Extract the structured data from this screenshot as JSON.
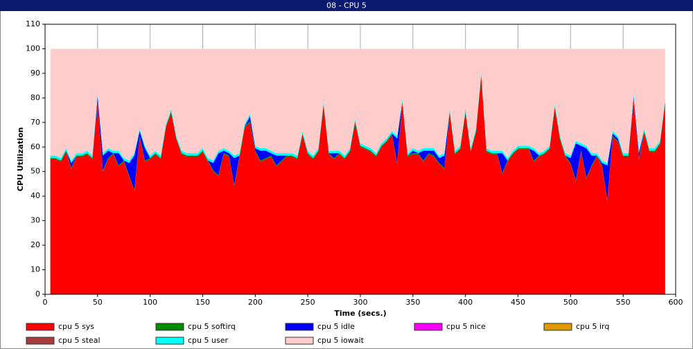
{
  "chart_data": {
    "type": "stacked_area",
    "title": "08 - CPU 5",
    "x_label": "Time (secs.)",
    "y_label": "CPU Utilization",
    "xlim": [
      0,
      600
    ],
    "xticks": [
      0,
      50,
      100,
      150,
      200,
      250,
      300,
      350,
      400,
      450,
      500,
      550,
      600
    ],
    "ylim": [
      0,
      110
    ],
    "yticks": [
      0,
      10,
      20,
      30,
      40,
      50,
      60,
      70,
      80,
      90,
      100,
      110
    ],
    "grid": "x",
    "x": [
      5,
      10,
      15,
      20,
      25,
      30,
      35,
      40,
      45,
      50,
      55,
      60,
      65,
      70,
      75,
      80,
      85,
      90,
      95,
      100,
      105,
      110,
      115,
      120,
      125,
      130,
      135,
      140,
      145,
      150,
      155,
      160,
      165,
      170,
      175,
      180,
      185,
      190,
      195,
      200,
      205,
      210,
      215,
      220,
      225,
      230,
      235,
      240,
      245,
      250,
      255,
      260,
      265,
      270,
      275,
      280,
      285,
      290,
      295,
      300,
      305,
      310,
      315,
      320,
      325,
      330,
      335,
      340,
      345,
      350,
      355,
      360,
      365,
      370,
      375,
      380,
      385,
      390,
      395,
      400,
      405,
      410,
      415,
      420,
      425,
      430,
      435,
      440,
      445,
      450,
      455,
      460,
      465,
      470,
      475,
      480,
      485,
      490,
      495,
      500,
      505,
      510,
      515,
      520,
      525,
      530,
      535,
      540,
      545,
      550,
      555,
      560,
      565,
      570,
      575,
      580,
      585,
      590
    ],
    "series": [
      {
        "name": "cpu 5 sys",
        "color": "#ff0000",
        "values": [
          55,
          55,
          54,
          58,
          51,
          56,
          56,
          57,
          55,
          78,
          50,
          55,
          57,
          52,
          54,
          48,
          42,
          64,
          54,
          55,
          57,
          55,
          68,
          74,
          63,
          57,
          56,
          56,
          56,
          58,
          54,
          50,
          48,
          57,
          56,
          44,
          56,
          68,
          70,
          58,
          54,
          55,
          56,
          52,
          54,
          56,
          56,
          55,
          65,
          57,
          55,
          58,
          77,
          57,
          55,
          57,
          55,
          58,
          70,
          60,
          59,
          58,
          56,
          60,
          62,
          65,
          53,
          78,
          56,
          57,
          57,
          54,
          57,
          56,
          53,
          51,
          74,
          57,
          59,
          74,
          58,
          66,
          89,
          58,
          57,
          57,
          49,
          54,
          57,
          59,
          59,
          59,
          54,
          56,
          57,
          59,
          76,
          63,
          56,
          53,
          46,
          58,
          47,
          52,
          56,
          52,
          38,
          64,
          62,
          56,
          56,
          79,
          55,
          66,
          58,
          58,
          61,
          78
        ]
      },
      {
        "name": "cpu 5 softirq",
        "color": "#008c00",
        "values": [
          0.5,
          0.5,
          0.5,
          0.5,
          0.5,
          0.5,
          0.5,
          0.5,
          0.5,
          0.5,
          0.5,
          0.5,
          0.5,
          0.5,
          0.5,
          0.5,
          0.5,
          0.5,
          0.5,
          0.5,
          0.5,
          0.5,
          0.5,
          0.5,
          0.5,
          0.5,
          0.5,
          0.5,
          0.5,
          0.5,
          0.5,
          0.5,
          0.5,
          0.5,
          0.5,
          0.5,
          0.5,
          0.5,
          0.5,
          0.5,
          0.5,
          0.5,
          0.5,
          0.5,
          0.5,
          0.5,
          0.5,
          0.5,
          0.5,
          0.5,
          0.5,
          0.5,
          0.5,
          0.5,
          0.5,
          0.5,
          0.5,
          0.5,
          0.5,
          0.5,
          0.5,
          0.5,
          0.5,
          0.5,
          0.5,
          0.5,
          0.5,
          0.5,
          0.5,
          0.5,
          0.5,
          0.5,
          0.5,
          0.5,
          0.5,
          0.5,
          0.5,
          0.5,
          0.5,
          0.5,
          0.5,
          0.5,
          0.5,
          0.5,
          0.5,
          0.5,
          0.5,
          0.5,
          0.5,
          0.5,
          0.5,
          0.5,
          0.5,
          0.5,
          0.5,
          0.5,
          0.5,
          0.5,
          0.5,
          0.5,
          0.5,
          0.5,
          0.5,
          0.5,
          0.5,
          0.5,
          0.5,
          0.5,
          0.5,
          0.5,
          0.5,
          0.5,
          0.5,
          0.5,
          0.5,
          0.5,
          0.5,
          0.5
        ]
      },
      {
        "name": "cpu 5 idle",
        "color": "#0000ff",
        "values": [
          0,
          0,
          0,
          0,
          2,
          0,
          0,
          0,
          0,
          2,
          6,
          3,
          0,
          5,
          0,
          5,
          14,
          2,
          5,
          0,
          0,
          0,
          0,
          0,
          0,
          0,
          0,
          0,
          0,
          0,
          0,
          3,
          9,
          1,
          1,
          11,
          0,
          0,
          2,
          1,
          4,
          3,
          1,
          4,
          2,
          0,
          0,
          0,
          0,
          0,
          0,
          0,
          0,
          0,
          2,
          0,
          0,
          0,
          0,
          0,
          0,
          0,
          0,
          0,
          0,
          0,
          10,
          0,
          0,
          1,
          0,
          4,
          1,
          2,
          2,
          5,
          0,
          0,
          0,
          0,
          0,
          0,
          0,
          0,
          0,
          0,
          8,
          0,
          0,
          0,
          0,
          0,
          4,
          0,
          0,
          0,
          0,
          0,
          0,
          2,
          15,
          2,
          12,
          4,
          0,
          1,
          14,
          1,
          1,
          0,
          0,
          1,
          2,
          0,
          0,
          0,
          0,
          0
        ]
      },
      {
        "name": "cpu 5 nice",
        "color": "#ff00ff",
        "values": [
          0,
          0,
          0,
          0,
          0,
          0,
          0,
          0,
          0,
          0,
          0,
          0,
          0,
          0,
          0,
          0,
          0,
          0,
          0,
          0,
          0,
          0,
          0,
          0,
          0,
          0,
          0,
          0,
          0,
          0,
          0,
          0,
          0,
          0,
          0,
          0,
          0,
          0,
          0,
          0,
          0,
          0,
          0,
          0,
          0,
          0,
          0,
          0,
          0,
          0,
          0,
          0,
          0,
          0,
          0,
          0,
          0,
          0,
          0,
          0,
          0,
          0,
          0,
          0,
          0,
          0,
          0,
          0,
          0,
          0,
          0,
          0,
          0,
          0,
          0,
          0,
          0,
          0,
          0,
          0,
          0,
          0,
          0,
          0,
          0,
          0,
          0,
          0,
          0,
          0,
          0,
          0,
          0,
          0,
          0,
          0,
          0,
          0,
          0,
          0,
          0,
          0,
          0,
          0,
          0,
          0,
          0,
          0,
          0,
          0,
          0,
          0,
          0,
          0,
          0,
          0,
          0,
          0
        ]
      },
      {
        "name": "cpu 5 irq",
        "color": "#e09a00",
        "values": [
          0,
          0,
          0,
          0,
          0,
          0,
          0,
          0,
          0,
          0,
          0,
          0,
          0,
          0,
          0,
          0,
          0,
          0,
          0,
          0,
          0,
          0,
          0,
          0,
          0,
          0,
          0,
          0,
          0,
          0,
          0,
          0,
          0,
          0,
          0,
          0,
          0,
          0,
          0,
          0,
          0,
          0,
          0,
          0,
          0,
          0,
          0,
          0,
          0,
          0,
          0,
          0,
          0,
          0,
          0,
          0,
          0,
          0,
          0,
          0,
          0,
          0,
          0,
          0,
          0,
          0,
          0,
          0,
          0,
          0,
          0,
          0,
          0,
          0,
          0,
          0,
          0,
          0,
          0,
          0,
          0,
          0,
          0,
          0,
          0,
          0,
          0,
          0,
          0,
          0,
          0,
          0,
          0,
          0,
          0,
          0,
          0,
          0,
          0,
          0,
          0,
          0,
          0,
          0,
          0,
          0,
          0,
          0,
          0,
          0,
          0,
          0,
          0,
          0,
          0,
          0,
          0,
          0
        ]
      },
      {
        "name": "cpu 5 steal",
        "color": "#a83c3c",
        "values": [
          0,
          0,
          0,
          0,
          0,
          0,
          0,
          0,
          0,
          0,
          0,
          0,
          0,
          0,
          0,
          0,
          0,
          0,
          0,
          0,
          0,
          0,
          0,
          0,
          0,
          0,
          0,
          0,
          0,
          0,
          0,
          0,
          0,
          0,
          0,
          0,
          0,
          0,
          0,
          0,
          0,
          0,
          0,
          0,
          0,
          0,
          0,
          0,
          0,
          0,
          0,
          0,
          0,
          0,
          0,
          0,
          0,
          0,
          0,
          0,
          0,
          0,
          0,
          0,
          0,
          0,
          0,
          0,
          0,
          0,
          0,
          0,
          0,
          0,
          0,
          0,
          0,
          0,
          0,
          0,
          0,
          0,
          0,
          0,
          0,
          0,
          0,
          0,
          0,
          0,
          0,
          0,
          0,
          0,
          0,
          0,
          0,
          0,
          0,
          0,
          0,
          0,
          0,
          0,
          0,
          0,
          0,
          0,
          0,
          0,
          0,
          0,
          0,
          0,
          0,
          0,
          0,
          0
        ]
      },
      {
        "name": "cpu 5 user",
        "color": "#00ffff",
        "values": [
          1,
          1,
          1,
          1,
          1,
          1,
          1,
          1,
          1,
          1,
          1,
          1,
          1,
          1,
          1,
          1,
          1,
          1,
          1,
          1,
          1,
          1,
          1,
          1,
          1,
          1,
          1,
          1,
          1,
          1,
          1,
          1,
          1,
          1,
          1,
          1,
          1,
          1,
          1,
          1,
          1,
          1,
          1,
          1,
          1,
          1,
          1,
          1,
          1,
          1,
          1,
          1,
          1,
          1,
          1,
          1,
          1,
          1,
          1,
          1,
          1,
          1,
          1,
          1,
          1,
          1,
          1,
          1,
          1,
          1,
          1,
          1,
          1,
          1,
          1,
          1,
          1,
          1,
          1,
          1,
          1,
          1,
          1,
          1,
          1,
          1,
          1,
          1,
          1,
          1,
          1,
          1,
          1,
          1,
          1,
          1,
          1,
          1,
          1,
          1,
          1,
          1,
          1,
          1,
          1,
          1,
          1,
          1,
          1,
          1,
          1,
          1,
          1,
          1,
          1,
          1,
          1,
          1
        ]
      },
      {
        "name": "cpu 5 iowait",
        "color": "#ffcccc",
        "values": [
          43.5,
          43.5,
          44.5,
          40.5,
          45.5,
          42.5,
          42.5,
          41.5,
          43.5,
          18.5,
          42.5,
          40.5,
          41.5,
          41.5,
          44.5,
          45.5,
          42.5,
          32.5,
          39.5,
          43.5,
          41.5,
          43.5,
          30.5,
          24.5,
          35.5,
          41.5,
          42.5,
          42.5,
          42.5,
          40.5,
          44.5,
          45.5,
          41.5,
          40.5,
          41.5,
          43.5,
          42.5,
          30.5,
          26.5,
          39.5,
          40.5,
          40.5,
          41.5,
          42.5,
          42.5,
          42.5,
          42.5,
          43.5,
          33.5,
          41.5,
          43.5,
          40.5,
          21.5,
          41.5,
          41.5,
          41.5,
          43.5,
          40.5,
          28.5,
          38.5,
          39.5,
          40.5,
          42.5,
          38.5,
          36.5,
          33.5,
          35.5,
          20.5,
          42.5,
          40.5,
          41.5,
          40.5,
          40.5,
          40.5,
          43.5,
          42.5,
          24.5,
          41.5,
          39.5,
          24.5,
          40.5,
          32.5,
          9.5,
          40.5,
          41.5,
          41.5,
          41.5,
          44.5,
          41.5,
          39.5,
          39.5,
          39.5,
          40.5,
          42.5,
          41.5,
          39.5,
          22.5,
          35.5,
          42.5,
          43.5,
          37.5,
          38.5,
          39.5,
          42.5,
          42.5,
          45.5,
          46.5,
          33.5,
          35.5,
          42.5,
          42.5,
          18.5,
          41.5,
          32.5,
          40.5,
          40.5,
          37.5,
          20.5
        ]
      }
    ]
  }
}
